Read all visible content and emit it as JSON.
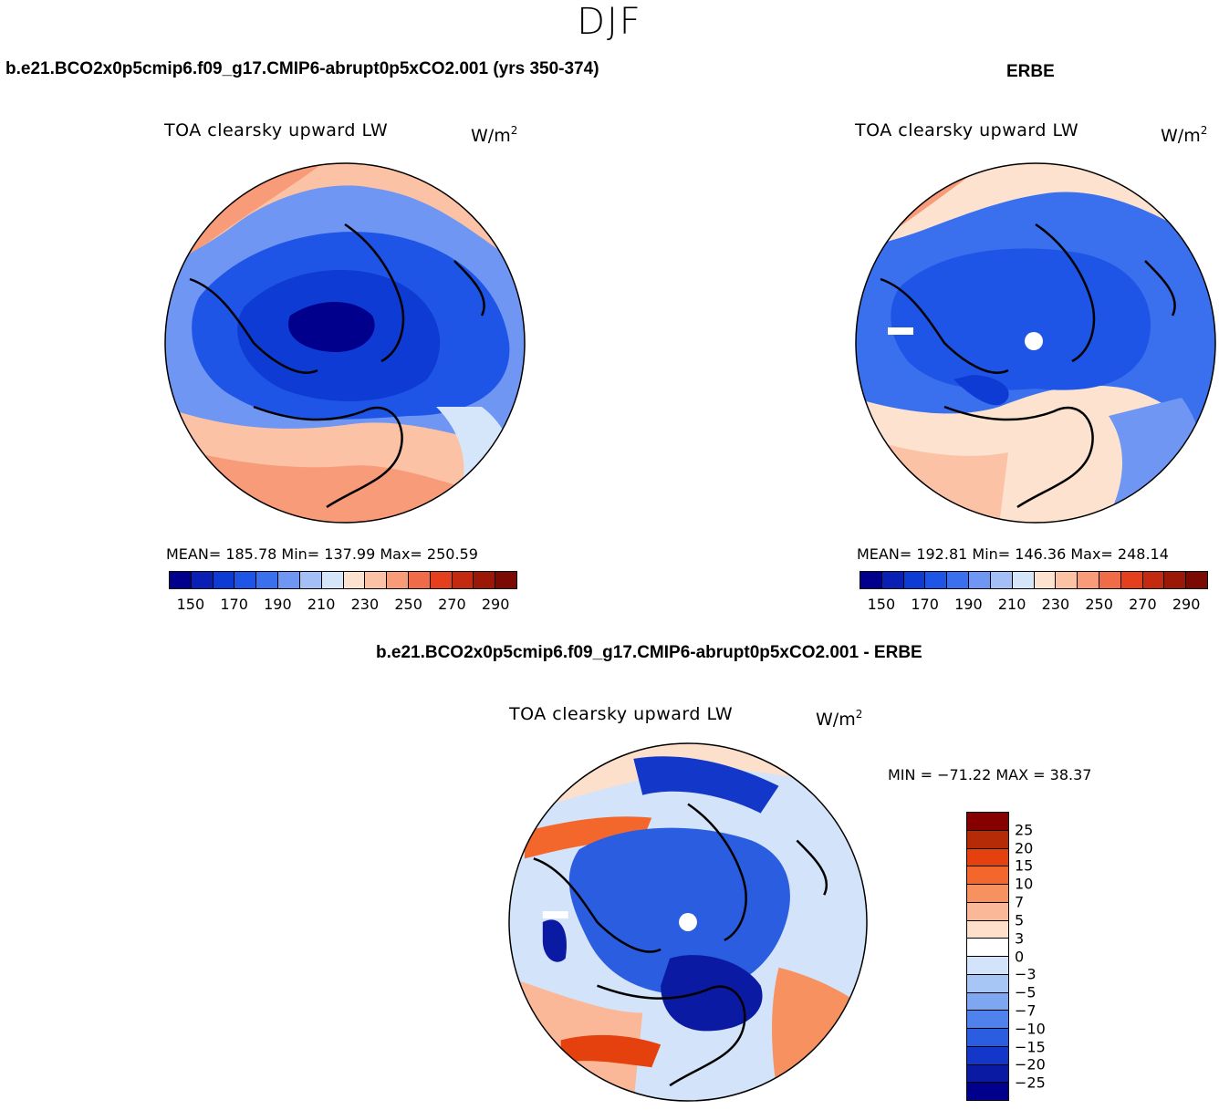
{
  "figure": {
    "season": "DJF",
    "panel_title": "TOA clearsky upward LW",
    "units_base": "W/m",
    "units_exp": "2"
  },
  "panels": {
    "model": {
      "case_title": "b.e21.BCO2x0p5cmip6.f09_g17.CMIP6-abrupt0p5xCO2.001 (yrs 350-374)",
      "stats": "MEAN= 185.78   Min= 137.99   Max= 250.59"
    },
    "obs": {
      "case_title": "ERBE",
      "stats": "MEAN= 192.81   Min= 146.36   Max= 248.14"
    },
    "diff": {
      "case_title": "b.e21.BCO2x0p5cmip6.f09_g17.CMIP6-abrupt0p5xCO2.001 - ERBE",
      "minmax": "MIN = −71.22 MAX =   38.37"
    }
  },
  "colorbars": {
    "abs_ticks": [
      "150",
      "170",
      "190",
      "210",
      "230",
      "250",
      "270",
      "290"
    ],
    "abs_colors": [
      "#00008c",
      "#0a1fb4",
      "#0d3bd4",
      "#1e55e6",
      "#3a70ee",
      "#6e96f2",
      "#a3bff6",
      "#d6e6fa",
      "#fde3cf",
      "#fbc2a6",
      "#f79b79",
      "#f06b47",
      "#e4401e",
      "#c42a10",
      "#9b1706",
      "#7a0a02"
    ],
    "diff_ticks": [
      "25",
      "20",
      "15",
      "10",
      "7",
      "5",
      "3",
      "0",
      "−3",
      "−5",
      "−7",
      "−10",
      "−15",
      "−20",
      "−25"
    ],
    "diff_colors": [
      "#870000",
      "#b52a07",
      "#e4410f",
      "#f4672c",
      "#f7915f",
      "#fbb898",
      "#fde0cc",
      "#ffffff",
      "#d3e3f9",
      "#a8c6f5",
      "#7ea6f1",
      "#4f82ec",
      "#2b5de0",
      "#1337c8",
      "#0a1aa3",
      "#00008c"
    ]
  }
}
